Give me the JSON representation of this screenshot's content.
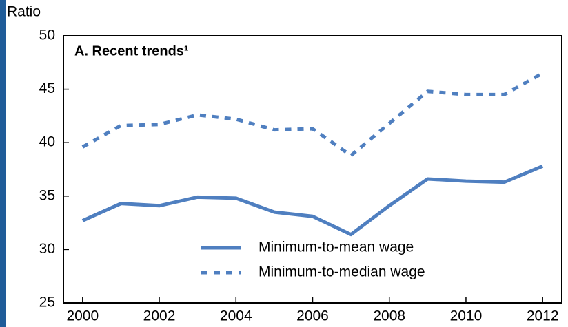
{
  "chart_data": {
    "type": "line",
    "title": "A. Recent trends¹",
    "y_label": "Ratio",
    "x": [
      2000,
      2001,
      2002,
      2003,
      2004,
      2005,
      2006,
      2007,
      2008,
      2009,
      2010,
      2011,
      2012
    ],
    "series": [
      {
        "name": "Minimum-to-mean wage",
        "color": "#4f7fc0",
        "style": "solid",
        "values": [
          32.7,
          34.3,
          34.1,
          34.9,
          34.8,
          33.5,
          33.1,
          31.4,
          34.1,
          36.6,
          36.4,
          36.3,
          37.8
        ]
      },
      {
        "name": "Minimum-to-median wage",
        "color": "#4f7fc0",
        "style": "dotted",
        "values": [
          39.6,
          41.6,
          41.7,
          42.6,
          42.2,
          41.2,
          41.3,
          38.8,
          41.8,
          44.8,
          44.5,
          44.5,
          46.5
        ]
      }
    ],
    "xlim": [
      1999.5,
      2012.5
    ],
    "xticks": [
      2000,
      2002,
      2004,
      2006,
      2008,
      2010,
      2012
    ],
    "ylim": [
      25,
      50
    ],
    "yticks": [
      25,
      30,
      35,
      40,
      45,
      50
    ],
    "legend": "bottom"
  }
}
